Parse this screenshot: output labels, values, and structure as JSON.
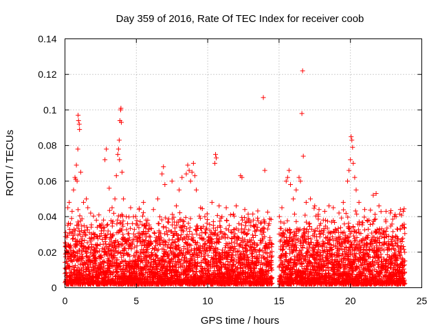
{
  "chart_data": {
    "type": "scatter",
    "title": "Day 359 of 2016, Rate Of TEC Index for receiver coob",
    "xlabel": "GPS time / hours",
    "ylabel": "ROTI / TECUs",
    "xlim": [
      0,
      25
    ],
    "ylim": [
      0,
      0.14
    ],
    "xticks": [
      0,
      5,
      10,
      15,
      20,
      25
    ],
    "xtick_labels": [
      "0",
      "5",
      "10",
      "15",
      "20",
      "25"
    ],
    "yticks": [
      0,
      0.02,
      0.04,
      0.06,
      0.08,
      0.1,
      0.12,
      0.14
    ],
    "ytick_labels": [
      "0",
      "0.02",
      "0.04",
      "0.06",
      "0.08",
      "0.1",
      "0.12",
      "0.14"
    ],
    "grid": true,
    "marker": "+",
    "series": [
      {
        "name": "ROTI",
        "color": "#ff0000",
        "points": [
          [
            0.2,
            0.045
          ],
          [
            0.3,
            0.048
          ],
          [
            0.5,
            0.043
          ],
          [
            0.6,
            0.055
          ],
          [
            0.7,
            0.062
          ],
          [
            0.75,
            0.061
          ],
          [
            0.8,
            0.069
          ],
          [
            0.85,
            0.06
          ],
          [
            0.9,
            0.078
          ],
          [
            0.92,
            0.097
          ],
          [
            0.95,
            0.094
          ],
          [
            1.0,
            0.092
          ],
          [
            1.02,
            0.089
          ],
          [
            1.1,
            0.065
          ],
          [
            1.3,
            0.048
          ],
          [
            1.5,
            0.05
          ],
          [
            1.6,
            0.045
          ],
          [
            2.2,
            0.038
          ],
          [
            2.5,
            0.035
          ],
          [
            2.8,
            0.072
          ],
          [
            2.9,
            0.078
          ],
          [
            3.1,
            0.056
          ],
          [
            3.3,
            0.045
          ],
          [
            3.5,
            0.05
          ],
          [
            3.6,
            0.063
          ],
          [
            3.7,
            0.075
          ],
          [
            3.75,
            0.078
          ],
          [
            3.8,
            0.083
          ],
          [
            3.82,
            0.072
          ],
          [
            3.85,
            0.094
          ],
          [
            3.9,
            0.1
          ],
          [
            3.92,
            0.101
          ],
          [
            3.95,
            0.093
          ],
          [
            4.0,
            0.065
          ],
          [
            4.1,
            0.05
          ],
          [
            4.3,
            0.04
          ],
          [
            4.6,
            0.045
          ],
          [
            4.8,
            0.04
          ],
          [
            5.2,
            0.044
          ],
          [
            5.5,
            0.048
          ],
          [
            5.8,
            0.038
          ],
          [
            6.2,
            0.044
          ],
          [
            6.5,
            0.05
          ],
          [
            6.8,
            0.064
          ],
          [
            6.9,
            0.068
          ],
          [
            7.0,
            0.058
          ],
          [
            7.5,
            0.06
          ],
          [
            7.8,
            0.046
          ],
          [
            8.0,
            0.055
          ],
          [
            8.2,
            0.062
          ],
          [
            8.5,
            0.064
          ],
          [
            8.6,
            0.069
          ],
          [
            8.7,
            0.066
          ],
          [
            8.8,
            0.06
          ],
          [
            8.9,
            0.065
          ],
          [
            9.0,
            0.07
          ],
          [
            9.1,
            0.063
          ],
          [
            9.2,
            0.055
          ],
          [
            9.5,
            0.045
          ],
          [
            9.8,
            0.04
          ],
          [
            10.3,
            0.048
          ],
          [
            10.5,
            0.07
          ],
          [
            10.55,
            0.075
          ],
          [
            10.6,
            0.073
          ],
          [
            10.8,
            0.046
          ],
          [
            11.0,
            0.04
          ],
          [
            11.3,
            0.045
          ],
          [
            11.6,
            0.041
          ],
          [
            12.0,
            0.046
          ],
          [
            12.3,
            0.063
          ],
          [
            12.4,
            0.062
          ],
          [
            12.6,
            0.044
          ],
          [
            12.9,
            0.038
          ],
          [
            13.2,
            0.035
          ],
          [
            13.5,
            0.034
          ],
          [
            13.8,
            0.03
          ],
          [
            13.9,
            0.107
          ],
          [
            14.0,
            0.066
          ],
          [
            14.2,
            0.033
          ],
          [
            15.2,
            0.045
          ],
          [
            15.5,
            0.06
          ],
          [
            15.6,
            0.062
          ],
          [
            15.7,
            0.066
          ],
          [
            15.8,
            0.058
          ],
          [
            16.0,
            0.05
          ],
          [
            16.2,
            0.055
          ],
          [
            16.4,
            0.062
          ],
          [
            16.5,
            0.06
          ],
          [
            16.6,
            0.098
          ],
          [
            16.65,
            0.122
          ],
          [
            16.7,
            0.074
          ],
          [
            16.9,
            0.048
          ],
          [
            17.2,
            0.05
          ],
          [
            17.5,
            0.046
          ],
          [
            17.8,
            0.044
          ],
          [
            18.2,
            0.043
          ],
          [
            18.5,
            0.046
          ],
          [
            18.8,
            0.045
          ],
          [
            19.2,
            0.042
          ],
          [
            19.5,
            0.048
          ],
          [
            19.8,
            0.06
          ],
          [
            19.9,
            0.066
          ],
          [
            20.0,
            0.072
          ],
          [
            20.05,
            0.085
          ],
          [
            20.1,
            0.083
          ],
          [
            20.15,
            0.079
          ],
          [
            20.2,
            0.07
          ],
          [
            20.3,
            0.062
          ],
          [
            20.4,
            0.055
          ],
          [
            20.6,
            0.048
          ],
          [
            21.0,
            0.044
          ],
          [
            21.3,
            0.038
          ],
          [
            21.6,
            0.052
          ],
          [
            21.8,
            0.053
          ],
          [
            22.0,
            0.046
          ],
          [
            22.5,
            0.043
          ],
          [
            22.8,
            0.042
          ],
          [
            23.2,
            0.04
          ],
          [
            23.5,
            0.044
          ],
          [
            23.7,
            0.043
          ]
        ]
      }
    ],
    "dense_band": {
      "series": "ROTI",
      "segments": [
        [
          0.0,
          14.5
        ],
        [
          15.0,
          23.8
        ]
      ],
      "y_range": [
        0.002,
        0.045
      ]
    }
  }
}
